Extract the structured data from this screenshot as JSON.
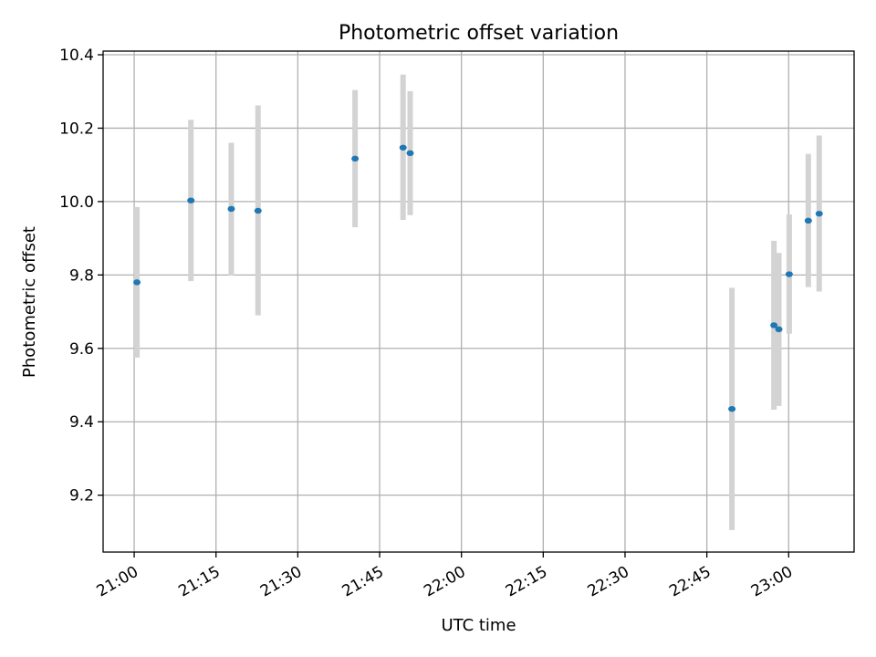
{
  "chart_data": {
    "type": "scatter",
    "title": "Photometric offset variation",
    "xlabel": "UTC time",
    "ylabel": "Photometric offset",
    "x_ticks": [
      "21:00",
      "21:15",
      "21:30",
      "21:45",
      "22:00",
      "22:15",
      "22:30",
      "22:45",
      "23:00"
    ],
    "x_tick_minutes": [
      1260,
      1275,
      1290,
      1305,
      1320,
      1335,
      1350,
      1365,
      1380
    ],
    "y_ticks": [
      "9.2",
      "9.4",
      "9.6",
      "9.8",
      "10.0",
      "10.2",
      "10.4"
    ],
    "y_tick_values": [
      9.2,
      9.4,
      9.6,
      9.8,
      10.0,
      10.2,
      10.4
    ],
    "xlim": [
      "20:54.3",
      "23:12.0"
    ],
    "xlim_minutes": [
      1254.3,
      1392.0
    ],
    "ylim": [
      9.045,
      10.41
    ],
    "grid": true,
    "colors": {
      "point": "#1f77b4",
      "errorbar": "#d3d3d3"
    },
    "points": [
      {
        "x": "21:00.5",
        "x_minutes": 1260.5,
        "y": 9.78,
        "y_low": 9.575,
        "y_high": 9.985
      },
      {
        "x": "21:10.4",
        "x_minutes": 1270.4,
        "y": 10.003,
        "y_low": 9.783,
        "y_high": 10.223
      },
      {
        "x": "21:17.8",
        "x_minutes": 1277.8,
        "y": 9.98,
        "y_low": 9.798,
        "y_high": 10.16
      },
      {
        "x": "21:22.7",
        "x_minutes": 1282.7,
        "y": 9.975,
        "y_low": 9.69,
        "y_high": 10.262
      },
      {
        "x": "21:40.5",
        "x_minutes": 1300.5,
        "y": 10.117,
        "y_low": 9.93,
        "y_high": 10.304
      },
      {
        "x": "21:49.3",
        "x_minutes": 1309.3,
        "y": 10.147,
        "y_low": 9.95,
        "y_high": 10.346
      },
      {
        "x": "21:50.6",
        "x_minutes": 1310.6,
        "y": 10.132,
        "y_low": 9.963,
        "y_high": 10.301
      },
      {
        "x": "22:49.6",
        "x_minutes": 1369.6,
        "y": 9.435,
        "y_low": 9.105,
        "y_high": 9.765
      },
      {
        "x": "22:57.3",
        "x_minutes": 1377.3,
        "y": 9.663,
        "y_low": 9.433,
        "y_high": 9.893
      },
      {
        "x": "22:58.2",
        "x_minutes": 1378.2,
        "y": 9.652,
        "y_low": 9.443,
        "y_high": 9.86
      },
      {
        "x": "23:00.1",
        "x_minutes": 1380.1,
        "y": 9.802,
        "y_low": 9.64,
        "y_high": 9.965
      },
      {
        "x": "23:03.6",
        "x_minutes": 1383.6,
        "y": 9.948,
        "y_low": 9.767,
        "y_high": 10.13
      },
      {
        "x": "23:05.6",
        "x_minutes": 1385.6,
        "y": 9.967,
        "y_low": 9.755,
        "y_high": 10.18
      }
    ]
  }
}
